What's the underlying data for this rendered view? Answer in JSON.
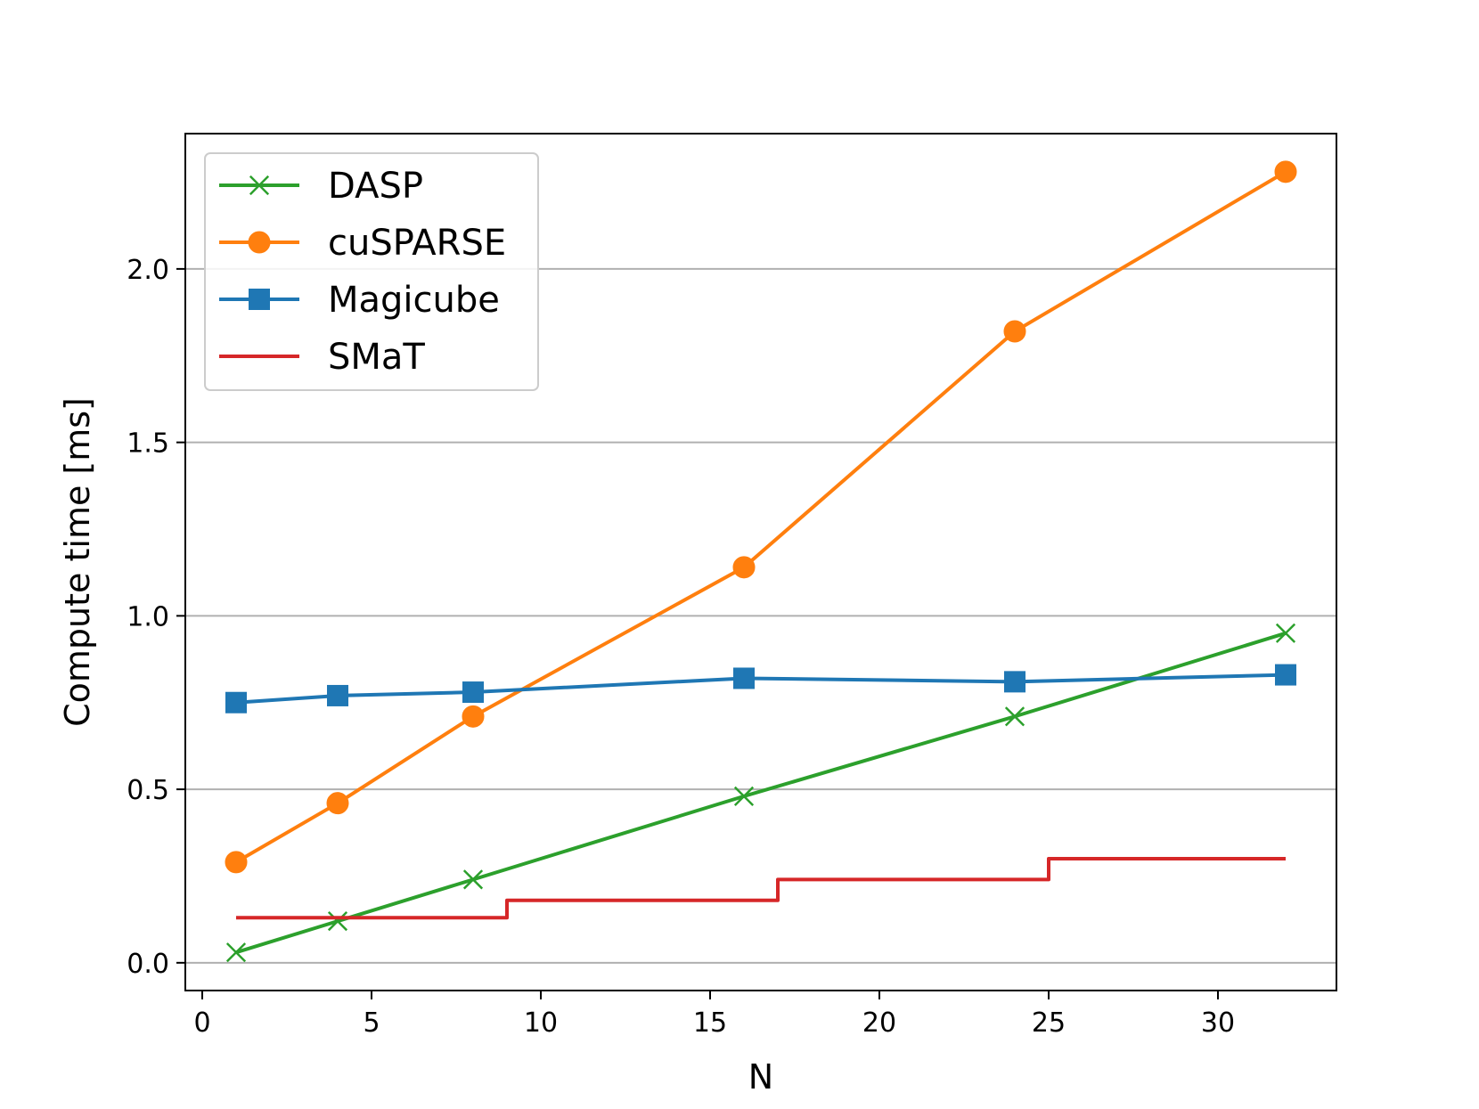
{
  "chart_data": {
    "type": "line",
    "xlabel": "N",
    "ylabel": "Compute time [ms]",
    "xlim": [
      -0.5,
      33.5
    ],
    "ylim": [
      -0.08,
      2.39
    ],
    "xticks": [
      0,
      5,
      10,
      15,
      20,
      25,
      30
    ],
    "yticks": [
      0.0,
      0.5,
      1.0,
      1.5,
      2.0
    ],
    "ytick_labels": [
      "0.0",
      "0.5",
      "1.0",
      "1.5",
      "2.0"
    ],
    "grid": "horizontal",
    "legend_position": "top-left",
    "series": [
      {
        "name": "DASP",
        "color": "#2ca02c",
        "marker": "x",
        "style": "line",
        "x": [
          1,
          4,
          8,
          16,
          24,
          32
        ],
        "y": [
          0.03,
          0.12,
          0.24,
          0.48,
          0.71,
          0.95
        ]
      },
      {
        "name": "cuSPARSE",
        "color": "#ff7f0e",
        "marker": "circle",
        "style": "line",
        "x": [
          1,
          4,
          8,
          16,
          24,
          32
        ],
        "y": [
          0.29,
          0.46,
          0.71,
          1.14,
          1.82,
          2.28
        ]
      },
      {
        "name": "Magicube",
        "color": "#1f77b4",
        "marker": "square",
        "style": "line",
        "x": [
          1,
          4,
          8,
          16,
          24,
          32
        ],
        "y": [
          0.75,
          0.77,
          0.78,
          0.82,
          0.81,
          0.83
        ]
      },
      {
        "name": "SMaT",
        "color": "#d62728",
        "marker": "none",
        "style": "step",
        "x": [
          1,
          9,
          9,
          17,
          17,
          25,
          25,
          32
        ],
        "y": [
          0.13,
          0.13,
          0.18,
          0.18,
          0.24,
          0.24,
          0.3,
          0.3
        ]
      }
    ]
  }
}
